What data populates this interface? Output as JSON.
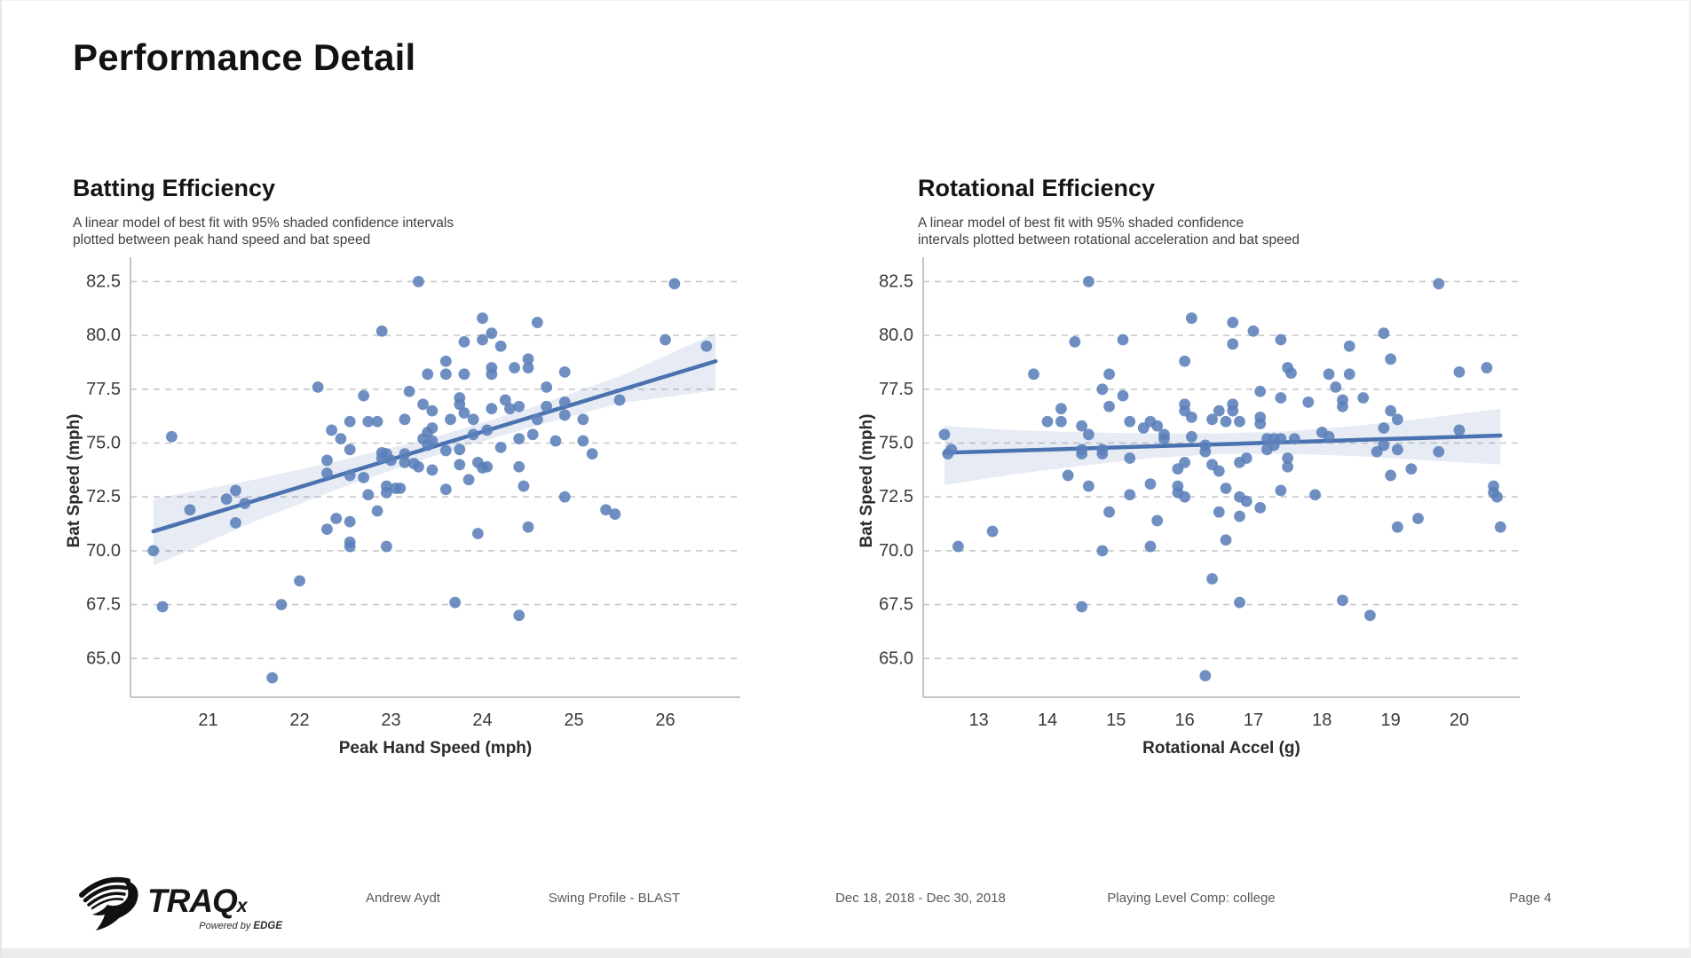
{
  "page": {
    "title": "Performance Detail"
  },
  "colors": {
    "dot": "#5b7fb9",
    "trend": "#4a72b0",
    "band": "#4c72b0",
    "grid": "#c8c8c8",
    "spine": "#c4c4c4",
    "tick_text": "#3a3a3a",
    "axis_title": "#2b2b2b",
    "title": "#111111",
    "subtitle": "#3f3f3f",
    "footer_text": "#5a5a5a",
    "bottom_strip": "#ececec"
  },
  "footer": {
    "name": "Andrew Aydt",
    "profile": "Swing Profile - BLAST",
    "date_range": "Dec 18, 2018 - Dec 30, 2018",
    "playing_level": "Playing Level Comp: college",
    "page_label": "Page 4",
    "logo": {
      "brand": "TRAQ",
      "suffix": "x",
      "powered": "Powered by ",
      "powered_brand": "EDGE"
    }
  },
  "chart_data": [
    {
      "type": "scatter",
      "id": "batting-efficiency",
      "title": "Batting Efficiency",
      "subtitle_lines": [
        "A linear model of best fit with 95% shaded confidence intervals",
        "plotted between peak hand speed and bat speed"
      ],
      "xlabel": "Peak Hand Speed (mph)",
      "ylabel": "Bat Speed (mph)",
      "xlim": [
        20.15,
        26.82
      ],
      "ylim": [
        63.2,
        83.3
      ],
      "xticks": [
        21,
        22,
        23,
        24,
        25,
        26
      ],
      "xtick_labels": [
        "21",
        "22",
        "23",
        "24",
        "25",
        "26"
      ],
      "yticks": [
        65.0,
        67.5,
        70.0,
        72.5,
        75.0,
        77.5,
        80.0,
        82.5
      ],
      "ytick_labels": [
        "65.0",
        "67.5",
        "70.0",
        "72.5",
        "75.0",
        "77.5",
        "80.0",
        "82.5"
      ],
      "grid": true,
      "legend": "none",
      "trend": {
        "x": [
          20.4,
          26.55
        ],
        "y": [
          70.9,
          78.8
        ]
      },
      "band": {
        "x": [
          20.4,
          21.5,
          22.5,
          23.5,
          24.5,
          25.5,
          26.55
        ],
        "hi": [
          72.4,
          73.3,
          74.25,
          75.3,
          76.6,
          78.1,
          80.1
        ],
        "lo": [
          69.3,
          71.35,
          73.0,
          74.45,
          75.7,
          76.85,
          77.45
        ]
      },
      "points": [
        [
          23.3,
          82.5
        ],
        [
          26.1,
          82.4
        ],
        [
          24.0,
          80.8
        ],
        [
          24.6,
          80.6
        ],
        [
          22.9,
          80.2
        ],
        [
          24.1,
          80.1
        ],
        [
          23.8,
          79.7
        ],
        [
          24.0,
          79.8
        ],
        [
          24.2,
          79.5
        ],
        [
          26.0,
          79.8
        ],
        [
          26.45,
          79.5
        ],
        [
          23.6,
          78.8
        ],
        [
          24.5,
          78.9
        ],
        [
          24.5,
          78.5
        ],
        [
          24.1,
          78.5
        ],
        [
          24.35,
          78.5
        ],
        [
          23.4,
          78.2
        ],
        [
          23.6,
          78.2
        ],
        [
          23.8,
          78.2
        ],
        [
          24.1,
          78.2
        ],
        [
          24.9,
          78.3
        ],
        [
          22.2,
          77.6
        ],
        [
          23.2,
          77.4
        ],
        [
          22.7,
          77.2
        ],
        [
          24.7,
          77.6
        ],
        [
          25.5,
          77.0
        ],
        [
          23.35,
          76.8
        ],
        [
          23.45,
          76.5
        ],
        [
          23.75,
          77.1
        ],
        [
          23.75,
          76.8
        ],
        [
          23.8,
          76.4
        ],
        [
          23.9,
          76.1
        ],
        [
          23.65,
          76.1
        ],
        [
          24.1,
          76.6
        ],
        [
          24.25,
          77.0
        ],
        [
          24.3,
          76.6
        ],
        [
          24.4,
          76.7
        ],
        [
          24.7,
          76.7
        ],
        [
          24.9,
          76.9
        ],
        [
          24.9,
          76.3
        ],
        [
          24.6,
          76.1
        ],
        [
          25.1,
          76.1
        ],
        [
          22.55,
          76.0
        ],
        [
          22.75,
          76.0
        ],
        [
          22.85,
          76.0
        ],
        [
          23.15,
          76.1
        ],
        [
          22.35,
          75.6
        ],
        [
          22.45,
          75.2
        ],
        [
          23.4,
          75.5
        ],
        [
          23.45,
          75.7
        ],
        [
          23.35,
          75.2
        ],
        [
          23.45,
          75.1
        ],
        [
          23.4,
          74.9
        ],
        [
          23.6,
          74.65
        ],
        [
          23.75,
          74.7
        ],
        [
          23.9,
          75.4
        ],
        [
          24.05,
          75.6
        ],
        [
          24.2,
          74.8
        ],
        [
          24.4,
          75.2
        ],
        [
          24.55,
          75.4
        ],
        [
          24.8,
          75.1
        ],
        [
          25.1,
          75.1
        ],
        [
          25.2,
          74.5
        ],
        [
          20.6,
          75.3
        ],
        [
          22.55,
          74.7
        ],
        [
          22.3,
          74.2
        ],
        [
          22.3,
          73.6
        ],
        [
          22.55,
          73.5
        ],
        [
          22.7,
          73.4
        ],
        [
          22.9,
          74.55
        ],
        [
          22.95,
          74.5
        ],
        [
          22.9,
          74.3
        ],
        [
          23.0,
          74.2
        ],
        [
          23.15,
          74.5
        ],
        [
          23.15,
          74.1
        ],
        [
          23.25,
          74.05
        ],
        [
          23.3,
          73.9
        ],
        [
          23.45,
          73.75
        ],
        [
          23.6,
          72.85
        ],
        [
          23.75,
          74.0
        ],
        [
          23.85,
          73.3
        ],
        [
          23.95,
          74.1
        ],
        [
          24.0,
          73.85
        ],
        [
          24.05,
          73.9
        ],
        [
          24.4,
          73.9
        ],
        [
          24.45,
          73.0
        ],
        [
          24.9,
          72.5
        ],
        [
          22.95,
          73.0
        ],
        [
          23.05,
          72.9
        ],
        [
          23.1,
          72.9
        ],
        [
          22.95,
          72.7
        ],
        [
          22.75,
          72.6
        ],
        [
          21.2,
          72.4
        ],
        [
          21.3,
          72.8
        ],
        [
          21.4,
          72.2
        ],
        [
          20.8,
          71.9
        ],
        [
          22.85,
          71.85
        ],
        [
          22.4,
          71.5
        ],
        [
          22.55,
          71.35
        ],
        [
          22.3,
          71.0
        ],
        [
          21.3,
          71.3
        ],
        [
          22.55,
          70.4
        ],
        [
          22.55,
          70.2
        ],
        [
          22.95,
          70.2
        ],
        [
          23.95,
          70.8
        ],
        [
          24.5,
          71.1
        ],
        [
          25.35,
          71.9
        ],
        [
          25.45,
          71.7
        ],
        [
          20.4,
          70.0
        ],
        [
          22.0,
          68.6
        ],
        [
          20.5,
          67.4
        ],
        [
          21.8,
          67.5
        ],
        [
          23.7,
          67.6
        ],
        [
          24.4,
          67.0
        ],
        [
          21.7,
          64.1
        ]
      ]
    },
    {
      "type": "scatter",
      "id": "rotational-efficiency",
      "title": "Rotational Efficiency",
      "subtitle_lines": [
        "A linear model of best fit with 95% shaded confidence",
        "intervals plotted between rotational acceleration and bat speed"
      ],
      "xlabel": "Rotational Accel (g)",
      "ylabel": "Bat Speed (mph)",
      "xlim": [
        12.19,
        20.88
      ],
      "ylim": [
        63.2,
        83.3
      ],
      "xticks": [
        13,
        14,
        15,
        16,
        17,
        18,
        19,
        20
      ],
      "xtick_labels": [
        "13",
        "14",
        "15",
        "16",
        "17",
        "18",
        "19",
        "20"
      ],
      "yticks": [
        65.0,
        67.5,
        70.0,
        72.5,
        75.0,
        77.5,
        80.0,
        82.5
      ],
      "ytick_labels": [
        "65.0",
        "67.5",
        "70.0",
        "72.5",
        "75.0",
        "77.5",
        "80.0",
        "82.5"
      ],
      "grid": true,
      "legend": "none",
      "trend": {
        "x": [
          12.5,
          20.6
        ],
        "y": [
          74.55,
          75.35
        ]
      },
      "band": {
        "x": [
          12.5,
          13.5,
          14.5,
          15.5,
          16.5,
          17.5,
          18.5,
          19.5,
          20.6
        ],
        "hi": [
          75.8,
          75.6,
          75.5,
          75.45,
          75.45,
          75.55,
          75.8,
          76.15,
          76.6
        ],
        "lo": [
          73.05,
          73.55,
          73.95,
          74.3,
          74.5,
          74.5,
          74.4,
          74.2,
          74.0
        ]
      },
      "points": [
        [
          14.6,
          82.5
        ],
        [
          19.7,
          82.4
        ],
        [
          16.1,
          80.8
        ],
        [
          16.7,
          80.6
        ],
        [
          17.0,
          80.2
        ],
        [
          18.9,
          80.1
        ],
        [
          14.4,
          79.7
        ],
        [
          15.1,
          79.8
        ],
        [
          16.7,
          79.6
        ],
        [
          17.4,
          79.8
        ],
        [
          18.4,
          79.5
        ],
        [
          16.0,
          78.8
        ],
        [
          19.0,
          78.9
        ],
        [
          13.8,
          78.2
        ],
        [
          14.9,
          78.2
        ],
        [
          17.5,
          78.5
        ],
        [
          17.55,
          78.25
        ],
        [
          18.1,
          78.2
        ],
        [
          18.4,
          78.2
        ],
        [
          20.0,
          78.3
        ],
        [
          20.4,
          78.5
        ],
        [
          14.8,
          77.5
        ],
        [
          18.2,
          77.6
        ],
        [
          17.1,
          77.4
        ],
        [
          15.1,
          77.2
        ],
        [
          17.4,
          77.1
        ],
        [
          17.8,
          76.9
        ],
        [
          18.3,
          77.0
        ],
        [
          18.3,
          76.7
        ],
        [
          18.6,
          77.1
        ],
        [
          14.9,
          76.7
        ],
        [
          16.0,
          76.8
        ],
        [
          16.0,
          76.5
        ],
        [
          16.5,
          76.5
        ],
        [
          16.7,
          76.8
        ],
        [
          16.7,
          76.5
        ],
        [
          14.2,
          76.6
        ],
        [
          14.0,
          76.0
        ],
        [
          14.2,
          76.0
        ],
        [
          15.2,
          76.0
        ],
        [
          15.5,
          76.0
        ],
        [
          15.6,
          75.8
        ],
        [
          15.4,
          75.7
        ],
        [
          16.1,
          76.2
        ],
        [
          16.4,
          76.1
        ],
        [
          16.6,
          76.0
        ],
        [
          16.8,
          76.0
        ],
        [
          17.1,
          76.2
        ],
        [
          17.1,
          75.9
        ],
        [
          14.5,
          75.8
        ],
        [
          14.6,
          75.4
        ],
        [
          15.7,
          75.4
        ],
        [
          18.0,
          75.5
        ],
        [
          18.1,
          75.3
        ],
        [
          18.9,
          75.7
        ],
        [
          20.0,
          75.6
        ],
        [
          19.0,
          76.5
        ],
        [
          19.1,
          76.1
        ],
        [
          12.5,
          75.4
        ],
        [
          12.6,
          74.7
        ],
        [
          12.55,
          74.5
        ],
        [
          14.5,
          74.7
        ],
        [
          14.5,
          74.5
        ],
        [
          14.8,
          74.7
        ],
        [
          14.8,
          74.5
        ],
        [
          15.7,
          75.2
        ],
        [
          16.1,
          75.3
        ],
        [
          16.3,
          74.9
        ],
        [
          16.3,
          74.6
        ],
        [
          17.2,
          75.2
        ],
        [
          17.3,
          75.2
        ],
        [
          17.4,
          75.2
        ],
        [
          17.3,
          74.9
        ],
        [
          17.2,
          74.7
        ],
        [
          17.6,
          75.2
        ],
        [
          18.8,
          74.6
        ],
        [
          18.9,
          74.9
        ],
        [
          19.1,
          74.7
        ],
        [
          19.7,
          74.6
        ],
        [
          15.2,
          74.3
        ],
        [
          16.0,
          74.1
        ],
        [
          16.4,
          74.0
        ],
        [
          16.8,
          74.1
        ],
        [
          16.9,
          74.3
        ],
        [
          15.9,
          73.8
        ],
        [
          16.5,
          73.7
        ],
        [
          17.5,
          74.3
        ],
        [
          17.5,
          73.9
        ],
        [
          14.3,
          73.5
        ],
        [
          15.9,
          73.0
        ],
        [
          15.5,
          73.1
        ],
        [
          14.6,
          73.0
        ],
        [
          15.2,
          72.6
        ],
        [
          15.9,
          72.7
        ],
        [
          16.0,
          72.5
        ],
        [
          16.6,
          72.9
        ],
        [
          16.8,
          72.5
        ],
        [
          16.9,
          72.3
        ],
        [
          17.4,
          72.8
        ],
        [
          17.9,
          72.6
        ],
        [
          19.0,
          73.5
        ],
        [
          19.3,
          73.8
        ],
        [
          20.5,
          73.0
        ],
        [
          20.5,
          72.7
        ],
        [
          20.55,
          72.5
        ],
        [
          17.1,
          72.0
        ],
        [
          16.5,
          71.8
        ],
        [
          16.8,
          71.6
        ],
        [
          14.9,
          71.8
        ],
        [
          15.6,
          71.4
        ],
        [
          19.4,
          71.5
        ],
        [
          19.1,
          71.1
        ],
        [
          20.6,
          71.1
        ],
        [
          13.2,
          70.9
        ],
        [
          12.7,
          70.2
        ],
        [
          16.6,
          70.5
        ],
        [
          14.8,
          70.0
        ],
        [
          15.5,
          70.2
        ],
        [
          16.4,
          68.7
        ],
        [
          14.5,
          67.4
        ],
        [
          16.8,
          67.6
        ],
        [
          18.3,
          67.7
        ],
        [
          18.7,
          67.0
        ],
        [
          16.3,
          64.2
        ]
      ]
    }
  ]
}
